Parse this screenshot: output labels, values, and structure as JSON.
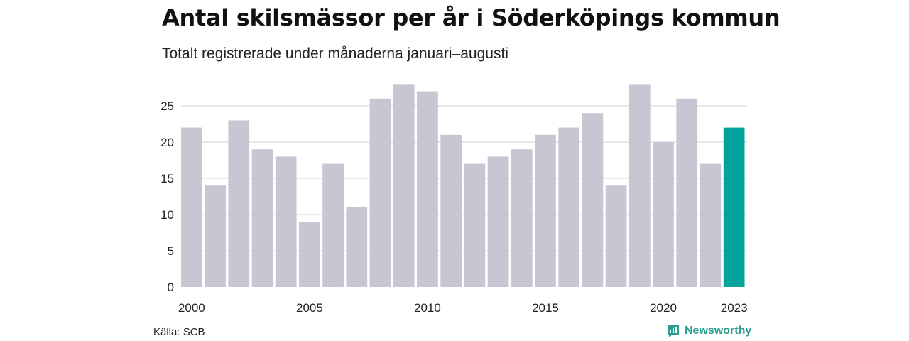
{
  "title": "Antal skilsmässor per år i Söderköpings kommun",
  "subtitle": "Totalt registrerade under månaderna januari–augusti",
  "source": "Källa: SCB",
  "brand": "Newsworthy",
  "colors": {
    "bar": "#c8c6d2",
    "highlight": "#00a49a",
    "grid": "#e2e2e2",
    "brand": "#2a9d8f"
  },
  "chart_data": {
    "type": "bar",
    "categories": [
      2000,
      2001,
      2002,
      2003,
      2004,
      2005,
      2006,
      2007,
      2008,
      2009,
      2010,
      2011,
      2012,
      2013,
      2014,
      2015,
      2016,
      2017,
      2018,
      2019,
      2020,
      2021,
      2022,
      2023
    ],
    "values": [
      22,
      14,
      23,
      19,
      18,
      9,
      17,
      11,
      26,
      28,
      27,
      21,
      17,
      18,
      19,
      21,
      22,
      24,
      14,
      28,
      20,
      26,
      17,
      22
    ],
    "highlight_category": 2023,
    "yticks": [
      0,
      5,
      10,
      15,
      20,
      25
    ],
    "xtick_labels": [
      "2000",
      "2005",
      "2010",
      "2015",
      "2020",
      "2023"
    ],
    "ylim": [
      0,
      28
    ],
    "grid": true
  }
}
